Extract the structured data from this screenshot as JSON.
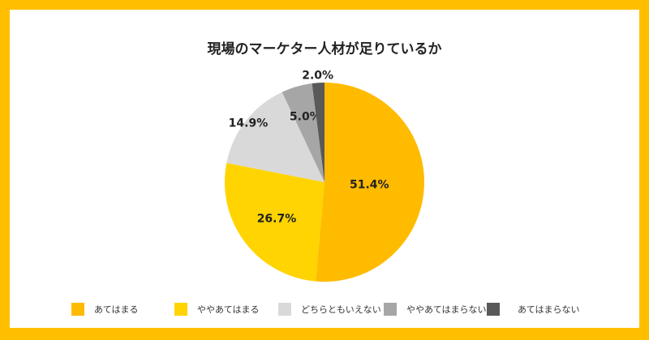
{
  "chart_data": {
    "type": "pie",
    "title": "現場のマーケター人材が足りているか",
    "categories": [
      "あてはまる",
      "ややあてはまる",
      "どちらともいえない",
      "ややあてはまらない",
      "あてはまらない"
    ],
    "values": [
      51.4,
      26.7,
      14.9,
      5.0,
      2.0
    ],
    "labels": [
      "51.4%",
      "26.7%",
      "14.9%",
      "5.0%",
      "2.0%"
    ],
    "colors": [
      "#FFBB00",
      "#FFD400",
      "#D9D9D9",
      "#A6A6A6",
      "#595959"
    ],
    "legend_position": "bottom"
  },
  "frame_color": "#FFBF00"
}
